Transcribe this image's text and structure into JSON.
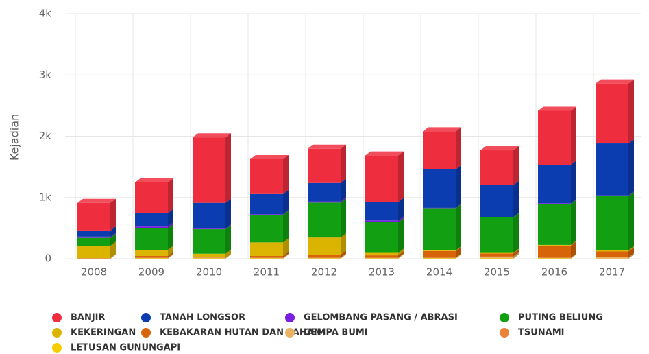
{
  "chart_data": {
    "type": "bar",
    "stacked": true,
    "y_label": "Kejadian",
    "categories": [
      "2008",
      "2009",
      "2010",
      "2011",
      "2012",
      "2013",
      "2014",
      "2015",
      "2016",
      "2017"
    ],
    "ylim": [
      0,
      4000
    ],
    "yticks": [
      0,
      {
        "value": 1000,
        "label": "1k"
      },
      {
        "value": 2000,
        "label": "2k"
      },
      {
        "value": 3000,
        "label": "3k"
      },
      {
        "value": 4000,
        "label": "4k"
      }
    ],
    "grid": true,
    "series": [
      {
        "name": "BANJIR",
        "color": "#ee2e3e",
        "values": [
          450,
          500,
          1070,
          570,
          560,
          760,
          620,
          570,
          880,
          979
        ]
      },
      {
        "name": "TANAH LONGSOR",
        "color": "#0b3cb0",
        "values": [
          100,
          220,
          420,
          330,
          300,
          300,
          630,
          520,
          630,
          848
        ]
      },
      {
        "name": "GELOMBANG PASANG / ABRASI",
        "color": "#7a1de0",
        "values": [
          20,
          30,
          10,
          10,
          20,
          30,
          5,
          5,
          10,
          11
        ]
      },
      {
        "name": "PUTING BELIUNG",
        "color": "#12a012",
        "values": [
          130,
          350,
          400,
          450,
          570,
          500,
          690,
          580,
          670,
          886
        ]
      },
      {
        "name": "KEKERINGAN",
        "color": "#dab400",
        "values": [
          200,
          100,
          60,
          220,
          280,
          40,
          10,
          10,
          10,
          19
        ]
      },
      {
        "name": "KEBAKARAN HUTAN DAN LAHAN",
        "color": "#d8640a",
        "values": [
          5,
          30,
          5,
          30,
          50,
          40,
          110,
          50,
          200,
          96
        ]
      },
      {
        "name": "GEMPA BUMI",
        "color": "#e9b265",
        "values": [
          5,
          10,
          10,
          10,
          10,
          10,
          10,
          30,
          10,
          20
        ]
      },
      {
        "name": "TSUNAMI",
        "color": "#ea823a",
        "values": [
          0,
          0,
          1,
          0,
          0,
          0,
          0,
          0,
          0,
          0
        ]
      },
      {
        "name": "LETUSAN GUNUNGAPI",
        "color": "#f6cd00",
        "values": [
          0,
          5,
          5,
          5,
          5,
          5,
          5,
          5,
          5,
          2
        ]
      }
    ]
  }
}
